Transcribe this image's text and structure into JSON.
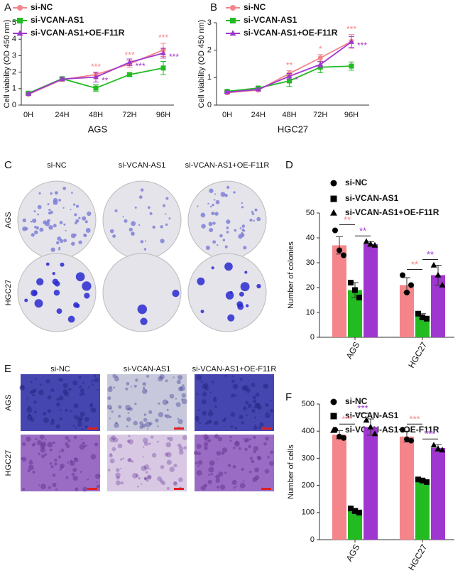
{
  "chart_data": [
    {
      "type": "line",
      "panel_label": "A",
      "xlabel": "AGS",
      "ylabel": "Cell viability (OD 450 nm)",
      "categories": [
        "0H",
        "24H",
        "48H",
        "72H",
        "96H"
      ],
      "ylim": [
        0,
        5
      ],
      "yticks": [
        0,
        1,
        2,
        3,
        4,
        5
      ],
      "series": [
        {
          "name": "si-NC",
          "color": "#f4858a",
          "marker": "circle",
          "values": [
            0.65,
            1.55,
            1.85,
            2.5,
            3.35
          ],
          "errors": [
            0.05,
            0.12,
            0.15,
            0.2,
            0.4
          ]
        },
        {
          "name": "si-VCAN-AS1",
          "color": "#22bb22",
          "marker": "square",
          "values": [
            0.72,
            1.6,
            1.03,
            1.85,
            2.25
          ],
          "errors": [
            0.05,
            0.1,
            0.2,
            0.1,
            0.4
          ]
        },
        {
          "name": "si-VCAN-AS1+OE-F11R",
          "color": "#a036d0",
          "marker": "triangle",
          "values": [
            0.68,
            1.58,
            1.7,
            2.6,
            3.15
          ],
          "errors": [
            0.05,
            0.1,
            0.3,
            0.2,
            0.3
          ]
        }
      ],
      "annotations": [
        {
          "category": "48H",
          "series": 0,
          "text": "***"
        },
        {
          "category": "48H",
          "series": 2,
          "text": "**"
        },
        {
          "category": "72H",
          "series": 0,
          "text": "***"
        },
        {
          "category": "72H",
          "series": 2,
          "text": "***"
        },
        {
          "category": "96H",
          "series": 0,
          "text": "***"
        },
        {
          "category": "96H",
          "series": 2,
          "text": "***"
        }
      ]
    },
    {
      "type": "line",
      "panel_label": "B",
      "xlabel": "HGC27",
      "ylabel": "Cell viability (OD 450 nm)",
      "categories": [
        "0H",
        "24H",
        "48H",
        "72H",
        "96H"
      ],
      "ylim": [
        0,
        3
      ],
      "yticks": [
        0,
        1,
        2,
        3
      ],
      "series": [
        {
          "name": "si-NC",
          "color": "#f4858a",
          "marker": "circle",
          "values": [
            0.45,
            0.55,
            1.15,
            1.72,
            2.32
          ],
          "errors": [
            0.04,
            0.05,
            0.1,
            0.12,
            0.25
          ]
        },
        {
          "name": "si-VCAN-AS1",
          "color": "#22bb22",
          "marker": "square",
          "values": [
            0.5,
            0.62,
            0.88,
            1.38,
            1.42
          ],
          "errors": [
            0.04,
            0.05,
            0.2,
            0.2,
            0.15
          ]
        },
        {
          "name": "si-VCAN-AS1+OE-F11R",
          "color": "#a036d0",
          "marker": "triangle",
          "values": [
            0.47,
            0.57,
            1.05,
            1.48,
            2.3
          ],
          "errors": [
            0.04,
            0.05,
            0.1,
            0.1,
            0.2
          ]
        }
      ],
      "annotations": [
        {
          "category": "48H",
          "series": 0,
          "text": "**"
        },
        {
          "category": "48H",
          "series": 2,
          "text": "*"
        },
        {
          "category": "72H",
          "series": 0,
          "text": "*"
        },
        {
          "category": "96H",
          "series": 0,
          "text": "***"
        },
        {
          "category": "96H",
          "series": 2,
          "text": "***"
        }
      ]
    },
    {
      "type": "bar",
      "panel_label": "D",
      "ylabel": "Number of colonies",
      "categories": [
        "AGS",
        "HGC27"
      ],
      "ylim": [
        0,
        50
      ],
      "yticks": [
        0,
        10,
        20,
        30,
        40,
        50
      ],
      "series": [
        {
          "name": "si-NC",
          "color": "#f4858a",
          "marker": "circle",
          "values": [
            37,
            21
          ],
          "errors": [
            3.5,
            3
          ],
          "replicates": [
            [
              43,
              35,
              33
            ],
            [
              25,
              18,
              21
            ]
          ]
        },
        {
          "name": "si-VCAN-AS1",
          "color": "#22bb22",
          "marker": "square",
          "values": [
            19,
            8.5
          ],
          "errors": [
            3,
            1
          ],
          "replicates": [
            [
              22,
              19,
              16
            ],
            [
              9.5,
              8,
              7.5
            ]
          ]
        },
        {
          "name": "si-VCAN-AS1+OE-F11R",
          "color": "#a036d0",
          "marker": "triangle",
          "values": [
            37.5,
            25
          ],
          "errors": [
            1,
            4
          ],
          "replicates": [
            [
              38.5,
              37.5,
              37
            ],
            [
              29,
              25,
              21
            ]
          ]
        }
      ],
      "comparisons": [
        {
          "category": "AGS",
          "from": 0,
          "to": 1,
          "text": "**",
          "color": "#f4858a"
        },
        {
          "category": "AGS",
          "from": 1,
          "to": 2,
          "text": "**",
          "color": "#a036d0"
        },
        {
          "category": "HGC27",
          "from": 0,
          "to": 1,
          "text": "**",
          "color": "#f4858a"
        },
        {
          "category": "HGC27",
          "from": 1,
          "to": 2,
          "text": "**",
          "color": "#a036d0"
        }
      ]
    },
    {
      "type": "bar",
      "panel_label": "F",
      "ylabel": "Number of cells",
      "categories": [
        "AGS",
        "HGC27"
      ],
      "ylim": [
        0,
        500
      ],
      "yticks": [
        0,
        100,
        200,
        300,
        400,
        500
      ],
      "series": [
        {
          "name": "si-NC",
          "color": "#f4858a",
          "marker": "circle",
          "values": [
            387,
            380
          ],
          "errors": [
            15,
            20
          ],
          "replicates": [
            [
              405,
              380,
              375
            ],
            [
              405,
              370,
              365
            ]
          ]
        },
        {
          "name": "si-VCAN-AS1",
          "color": "#22bb22",
          "marker": "square",
          "values": [
            108,
            218
          ],
          "errors": [
            8,
            6
          ],
          "replicates": [
            [
              115,
              105,
              100
            ],
            [
              222,
              218,
              212
            ]
          ]
        },
        {
          "name": "si-VCAN-AS1+OE-F11R",
          "color": "#a036d0",
          "marker": "triangle",
          "values": [
            415,
            338
          ],
          "errors": [
            30,
            12
          ],
          "replicates": [
            [
              440,
              415,
              390
            ],
            [
              348,
              335,
              330
            ]
          ]
        }
      ],
      "comparisons": [
        {
          "category": "AGS",
          "from": 0,
          "to": 1,
          "text": "***",
          "color": "#f4858a"
        },
        {
          "category": "AGS",
          "from": 1,
          "to": 2,
          "text": "***",
          "color": "#a036d0"
        },
        {
          "category": "HGC27",
          "from": 0,
          "to": 1,
          "text": "***",
          "color": "#f4858a"
        },
        {
          "category": "HGC27",
          "from": 1,
          "to": 2,
          "text": "***",
          "color": "#a036d0"
        }
      ]
    }
  ],
  "image_panels": [
    {
      "label": "C",
      "columns": [
        "si-NC",
        "si-VCAN-AS1",
        "si-VCAN-AS1+OE-F11R"
      ],
      "rows": [
        "AGS",
        "HGC27"
      ]
    },
    {
      "label": "E",
      "columns": [
        "si-NC",
        "si-VCAN-AS1",
        "si-VCAN-AS1+OE-F11R"
      ],
      "rows": [
        "AGS",
        "HGC27"
      ]
    }
  ]
}
